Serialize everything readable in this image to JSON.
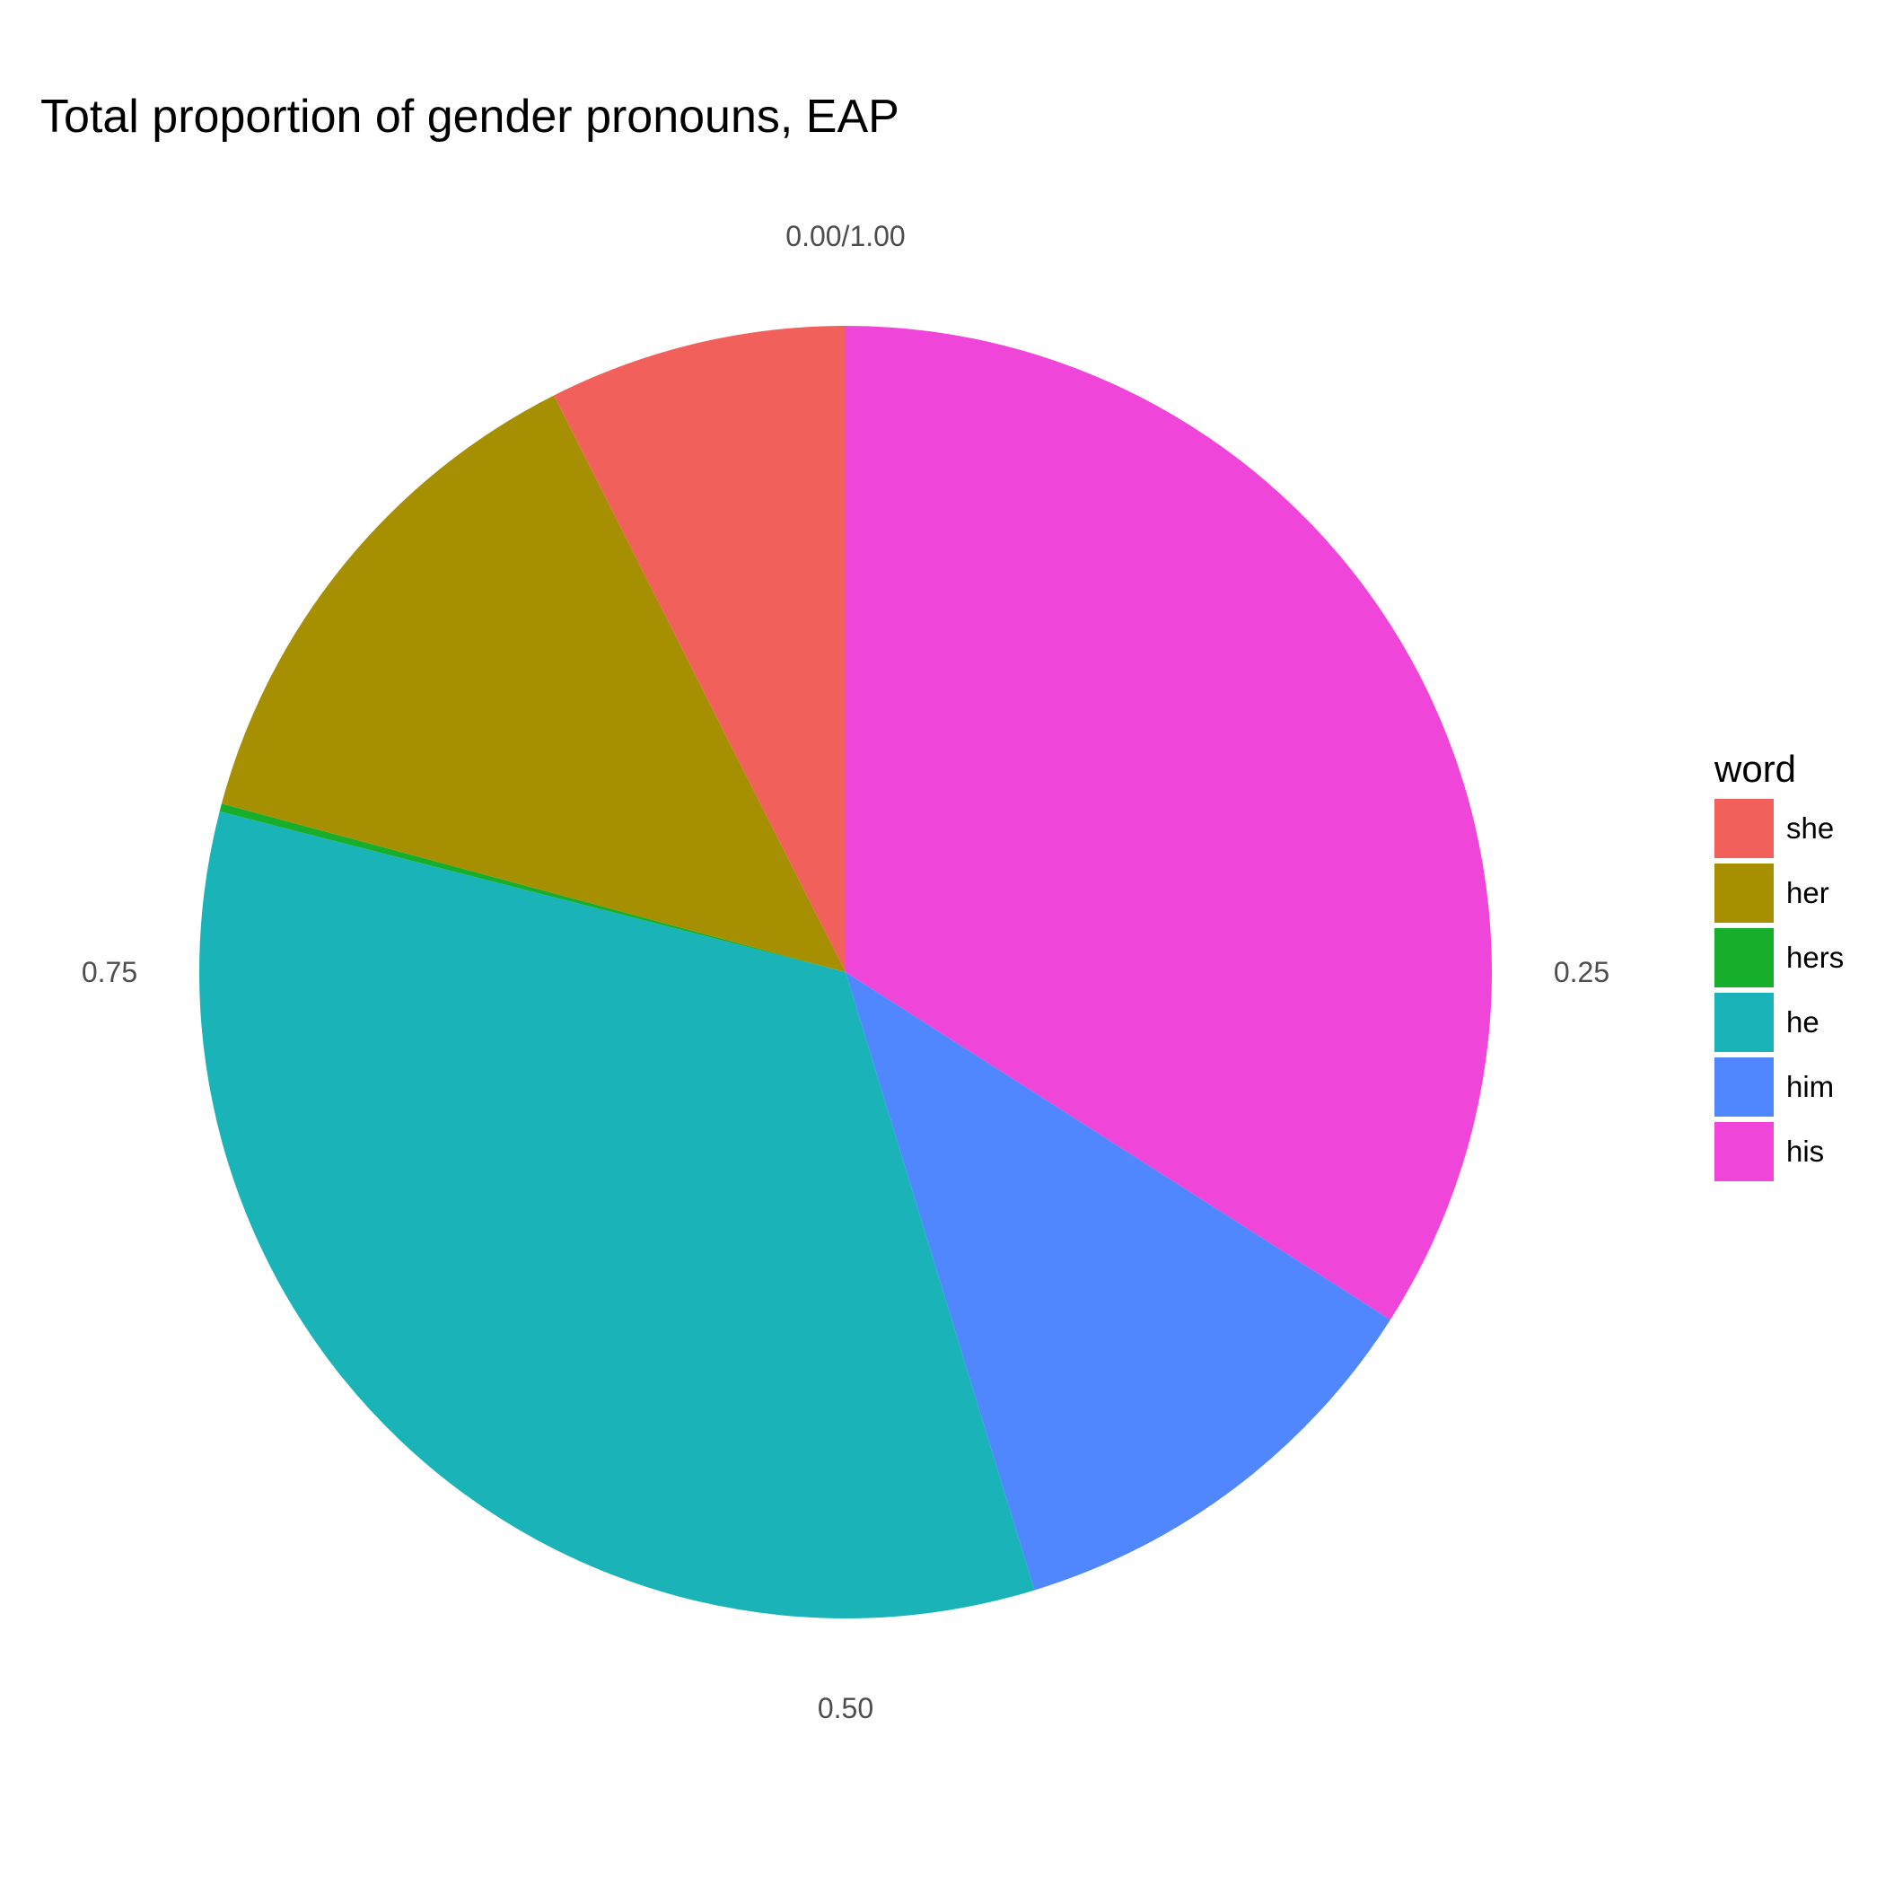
{
  "chart_data": {
    "type": "pie",
    "title": "Total proportion of gender pronouns, EAP",
    "categories": [
      "she",
      "her",
      "hers",
      "he",
      "him",
      "his"
    ],
    "values": [
      0.0745,
      0.1335,
      0.002,
      0.3372,
      0.1124,
      0.3404
    ],
    "colors": [
      "#F2605C",
      "#A68F00",
      "#17AE2C",
      "#1AB3B7",
      "#5087FF",
      "#EF45D9"
    ],
    "stack_order": [
      "his",
      "him",
      "he",
      "hers",
      "her",
      "she"
    ],
    "tick_labels": [
      "0.00/1.00",
      "0.25",
      "0.50",
      "0.75"
    ],
    "tick_values": [
      0,
      0.25,
      0.5,
      0.75
    ],
    "legend": {
      "title": "word",
      "placement": "right"
    },
    "grid": false
  }
}
